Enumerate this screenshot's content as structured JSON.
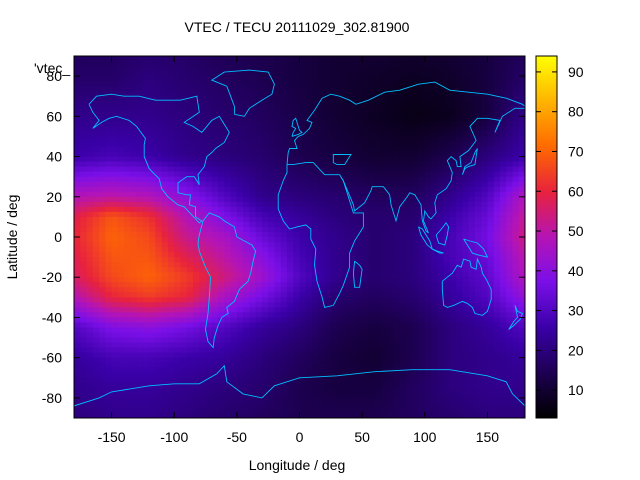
{
  "chart_data": {
    "type": "heatmap",
    "title": "VTEC / TECU 20111029_302.81900",
    "xlabel": "Longitude / deg",
    "ylabel": "Latitude / deg",
    "key_label": "'vtec_",
    "xlim": [
      -180,
      180
    ],
    "ylim": [
      -90,
      90
    ],
    "xticks": [
      "-150",
      "-100",
      "-50",
      "0",
      "50",
      "100",
      "150"
    ],
    "xtick_values": [
      -150,
      -100,
      -50,
      0,
      50,
      100,
      150
    ],
    "yticks": [
      "-80",
      "-60",
      "-40",
      "-20",
      "0",
      "20",
      "40",
      "60",
      "80"
    ],
    "ytick_values": [
      -80,
      -60,
      -40,
      -20,
      0,
      20,
      40,
      60,
      80
    ],
    "colorbar": {
      "range": [
        3,
        94
      ],
      "ticks": [
        "10",
        "20",
        "30",
        "40",
        "50",
        "60",
        "70",
        "80",
        "90"
      ],
      "tick_values": [
        10,
        20,
        30,
        40,
        50,
        60,
        70,
        80,
        90
      ],
      "palette": [
        "#000000",
        "#1d0052",
        "#3a00a8",
        "#7a0fe8",
        "#b514b5",
        "#e8223d",
        "#ff6a00",
        "#ffb400",
        "#ffff00"
      ]
    },
    "grid": false,
    "legend": "none",
    "overlay": "coastlines",
    "colors": {
      "coastline": "#00bfff",
      "frame": "#000000"
    },
    "field_grid": {
      "lon": [
        -180,
        -150,
        -120,
        -90,
        -60,
        -30,
        0,
        30,
        60,
        90,
        120,
        150,
        180
      ],
      "lat": [
        90,
        80,
        60,
        40,
        20,
        10,
        0,
        -10,
        -20,
        -30,
        -45,
        -60,
        -75,
        -90
      ],
      "vtec": [
        [
          16,
          16,
          18,
          17,
          15,
          14,
          12,
          10,
          10,
          9,
          10,
          12,
          16
        ],
        [
          17,
          17,
          20,
          18,
          16,
          14,
          12,
          10,
          9,
          8,
          9,
          12,
          17
        ],
        [
          22,
          22,
          22,
          20,
          18,
          16,
          13,
          10,
          8,
          6,
          7,
          12,
          22
        ],
        [
          26,
          28,
          26,
          22,
          20,
          18,
          14,
          12,
          10,
          10,
          14,
          20,
          26
        ],
        [
          48,
          50,
          48,
          40,
          30,
          22,
          20,
          18,
          16,
          16,
          22,
          30,
          48
        ],
        [
          58,
          68,
          62,
          48,
          38,
          28,
          24,
          20,
          18,
          18,
          26,
          34,
          52
        ],
        [
          60,
          70,
          66,
          52,
          46,
          34,
          26,
          22,
          18,
          20,
          28,
          36,
          54
        ],
        [
          58,
          68,
          68,
          58,
          50,
          40,
          28,
          22,
          18,
          20,
          28,
          34,
          50
        ],
        [
          56,
          66,
          70,
          64,
          54,
          44,
          30,
          22,
          18,
          20,
          26,
          32,
          48
        ],
        [
          48,
          60,
          64,
          60,
          46,
          36,
          26,
          18,
          16,
          18,
          24,
          30,
          42
        ],
        [
          30,
          38,
          40,
          36,
          30,
          24,
          20,
          14,
          12,
          14,
          20,
          24,
          30
        ],
        [
          24,
          28,
          28,
          26,
          24,
          20,
          16,
          12,
          10,
          14,
          20,
          22,
          24
        ],
        [
          22,
          24,
          24,
          22,
          20,
          18,
          14,
          12,
          12,
          16,
          20,
          22,
          22
        ],
        [
          20,
          22,
          22,
          20,
          18,
          16,
          14,
          14,
          14,
          16,
          18,
          20,
          20
        ]
      ]
    }
  }
}
